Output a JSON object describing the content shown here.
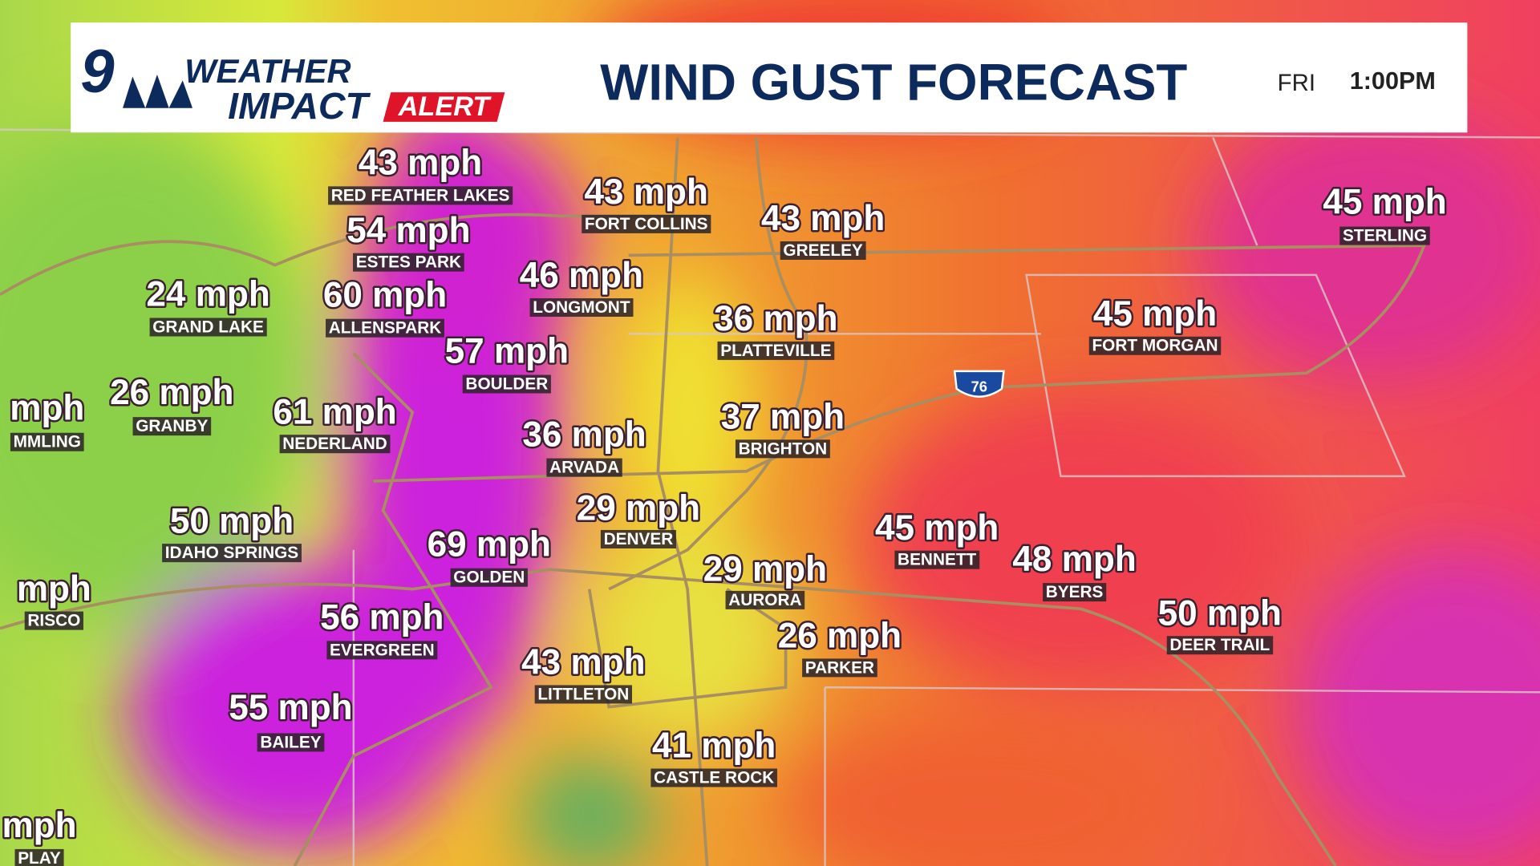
{
  "header": {
    "logo": {
      "number": "9",
      "line1": "WEATHER",
      "line2": "IMPACT",
      "badge": "ALERT"
    },
    "title": "WIND GUST FORECAST",
    "day": "FRI",
    "time": "1:00PM"
  },
  "highway_shield": "76",
  "locations": [
    {
      "gust": "43 mph",
      "name": "RED FEATHER LAKES"
    },
    {
      "gust": "43 mph",
      "name": "FORT COLLINS"
    },
    {
      "gust": "43 mph",
      "name": "GREELEY"
    },
    {
      "gust": "45 mph",
      "name": "STERLING"
    },
    {
      "gust": "54 mph",
      "name": "ESTES PARK"
    },
    {
      "gust": "24 mph",
      "name": "GRAND LAKE"
    },
    {
      "gust": "60 mph",
      "name": "ALLENSPARK"
    },
    {
      "gust": "46 mph",
      "name": "LONGMONT"
    },
    {
      "gust": "36 mph",
      "name": "PLATTEVILLE"
    },
    {
      "gust": "45 mph",
      "name": "FORT MORGAN"
    },
    {
      "gust": "57 mph",
      "name": "BOULDER"
    },
    {
      "gust": "mph",
      "name": "MMLING"
    },
    {
      "gust": "26 mph",
      "name": "GRANBY"
    },
    {
      "gust": "61 mph",
      "name": "NEDERLAND"
    },
    {
      "gust": "36 mph",
      "name": "ARVADA"
    },
    {
      "gust": "37 mph",
      "name": "BRIGHTON"
    },
    {
      "gust": "29 mph",
      "name": "DENVER"
    },
    {
      "gust": "50 mph",
      "name": "IDAHO SPRINGS"
    },
    {
      "gust": "69 mph",
      "name": "GOLDEN"
    },
    {
      "gust": "45 mph",
      "name": "BENNETT"
    },
    {
      "gust": "48 mph",
      "name": "BYERS"
    },
    {
      "gust": "29 mph",
      "name": "AURORA"
    },
    {
      "gust": "mph",
      "name": "RISCO"
    },
    {
      "gust": "56 mph",
      "name": "EVERGREEN"
    },
    {
      "gust": "50 mph",
      "name": "DEER TRAIL"
    },
    {
      "gust": "26 mph",
      "name": "PARKER"
    },
    {
      "gust": "43 mph",
      "name": "LITTLETON"
    },
    {
      "gust": "55 mph",
      "name": "BAILEY"
    },
    {
      "gust": "41 mph",
      "name": "CASTLE ROCK"
    },
    {
      "gust": "mph",
      "name": "PLAY"
    }
  ]
}
